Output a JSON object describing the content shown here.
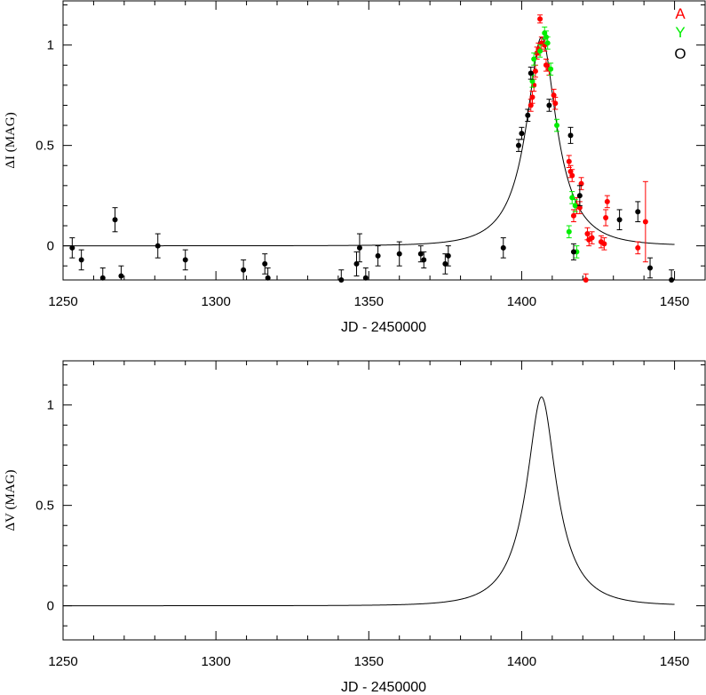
{
  "chart_data": [
    {
      "type": "scatter",
      "xlabel": "JD - 2450000",
      "ylabel": "ΔI (MAG)",
      "xlim": [
        1250,
        1460
      ],
      "ylim": [
        -0.17,
        1.22
      ],
      "x_ticks": [
        1250,
        1300,
        1350,
        1400,
        1450
      ],
      "y_ticks": [
        0,
        0.5,
        1
      ],
      "y_tick_labels": [
        "0",
        "0.5",
        "1"
      ],
      "legend": [
        "A",
        "Y",
        "O"
      ],
      "legend_placement": "top-right",
      "model_curve": {
        "t0": 1406.5,
        "amplitude": 1.04,
        "tau": 13.5,
        "u0": 0.35,
        "x_start": 1250,
        "x_end": 1450
      },
      "series": [
        {
          "name": "A",
          "color": "#ff0000",
          "points": [
            [
              1403.0,
              0.7,
              0.03
            ],
            [
              1403.5,
              0.74,
              0.03
            ],
            [
              1404.0,
              0.8,
              0.03
            ],
            [
              1404.5,
              0.87,
              0.03
            ],
            [
              1405.0,
              0.96,
              0.03
            ],
            [
              1405.5,
              0.98,
              0.03
            ],
            [
              1406.0,
              1.13,
              0.02
            ],
            [
              1406.5,
              1.01,
              0.03
            ],
            [
              1407.5,
              1.0,
              0.03
            ],
            [
              1408.0,
              0.9,
              0.03
            ],
            [
              1409.0,
              0.88,
              0.03
            ],
            [
              1410.5,
              0.75,
              0.03
            ],
            [
              1411.0,
              0.71,
              0.03
            ],
            [
              1415.5,
              0.42,
              0.03
            ],
            [
              1416.0,
              0.37,
              0.03
            ],
            [
              1416.5,
              0.35,
              0.03
            ],
            [
              1417.0,
              0.15,
              0.03
            ],
            [
              1418.0,
              0.2,
              0.04
            ],
            [
              1419.0,
              0.19,
              0.03
            ],
            [
              1419.5,
              0.31,
              0.03
            ],
            [
              1421.5,
              0.06,
              0.03
            ],
            [
              1422.0,
              0.03,
              0.03
            ],
            [
              1423.0,
              0.04,
              0.03
            ],
            [
              1426.0,
              0.02,
              0.03
            ],
            [
              1427.0,
              0.01,
              0.03
            ],
            [
              1427.5,
              0.14,
              0.04
            ],
            [
              1428.0,
              0.22,
              0.03
            ],
            [
              1438.0,
              -0.01,
              0.03
            ],
            [
              1440.5,
              0.12,
              0.2
            ],
            [
              1421.0,
              -0.17,
              0.03
            ]
          ]
        },
        {
          "name": "Y",
          "color": "#00ee00",
          "points": [
            [
              1403.5,
              0.82,
              0.03
            ],
            [
              1404.0,
              0.93,
              0.03
            ],
            [
              1406.0,
              0.97,
              0.03
            ],
            [
              1407.5,
              1.06,
              0.03
            ],
            [
              1408.0,
              1.04,
              0.03
            ],
            [
              1408.5,
              1.01,
              0.03
            ],
            [
              1409.5,
              0.88,
              0.03
            ],
            [
              1411.5,
              0.6,
              0.03
            ],
            [
              1415.5,
              0.07,
              0.03
            ],
            [
              1416.5,
              0.24,
              0.03
            ],
            [
              1417.5,
              0.2,
              0.03
            ],
            [
              1418.0,
              -0.03,
              0.03
            ]
          ]
        },
        {
          "name": "O",
          "color": "#000000",
          "points": [
            [
              1253,
              -0.01,
              0.05
            ],
            [
              1256,
              -0.07,
              0.05
            ],
            [
              1263,
              -0.16,
              0.05
            ],
            [
              1267,
              0.13,
              0.06
            ],
            [
              1269,
              -0.15,
              0.05
            ],
            [
              1281,
              0.0,
              0.06
            ],
            [
              1290,
              -0.07,
              0.05
            ],
            [
              1309,
              -0.12,
              0.05
            ],
            [
              1316,
              -0.09,
              0.05
            ],
            [
              1317,
              -0.16,
              0.05
            ],
            [
              1341,
              -0.17,
              0.05
            ],
            [
              1346,
              -0.09,
              0.06
            ],
            [
              1347,
              -0.01,
              0.07
            ],
            [
              1349,
              -0.16,
              0.05
            ],
            [
              1353,
              -0.05,
              0.05
            ],
            [
              1360,
              -0.04,
              0.06
            ],
            [
              1367,
              -0.04,
              0.04
            ],
            [
              1368,
              -0.07,
              0.04
            ],
            [
              1375,
              -0.09,
              0.05
            ],
            [
              1376,
              -0.05,
              0.05
            ],
            [
              1394,
              -0.01,
              0.05
            ],
            [
              1399,
              0.5,
              0.03
            ],
            [
              1400,
              0.56,
              0.03
            ],
            [
              1402,
              0.65,
              0.03
            ],
            [
              1403,
              0.86,
              0.03
            ],
            [
              1409,
              0.7,
              0.03
            ],
            [
              1416,
              0.55,
              0.04
            ],
            [
              1417,
              -0.03,
              0.04
            ],
            [
              1419,
              0.25,
              0.05
            ],
            [
              1432,
              0.13,
              0.05
            ],
            [
              1438,
              0.17,
              0.05
            ],
            [
              1442,
              -0.11,
              0.05
            ],
            [
              1449,
              -0.17,
              0.05
            ]
          ]
        }
      ]
    },
    {
      "type": "line",
      "xlabel": "JD - 2450000",
      "ylabel": "ΔV (MAG)",
      "xlim": [
        1250,
        1460
      ],
      "ylim": [
        -0.17,
        1.22
      ],
      "x_ticks": [
        1250,
        1300,
        1350,
        1400,
        1450
      ],
      "y_ticks": [
        0,
        0.5,
        1
      ],
      "y_tick_labels": [
        "0",
        "0.5",
        "1"
      ],
      "model_curve": {
        "t0": 1406.5,
        "amplitude": 1.04,
        "tau": 13.5,
        "u0": 0.35,
        "x_start": 1250,
        "x_end": 1450
      }
    }
  ]
}
